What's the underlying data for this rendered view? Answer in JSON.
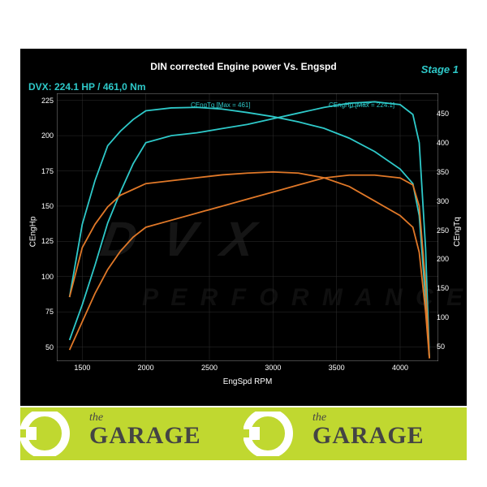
{
  "title": "DIN corrected Engine power Vs. Engspd",
  "stage": "Stage 1",
  "dvx_label": "DVX:  224.1 HP / 461,0 Nm",
  "xlabel": "EngSpd RPM",
  "ylabel_left": "CEngHp",
  "ylabel_right": "CEngTq",
  "annot_tq": "CEngTq [Max = 461]",
  "annot_hp": "CEngHp [Max = 224.1]",
  "colors": {
    "bg": "#000000",
    "grid": "#2f2f2f",
    "tuned": "#2ec9c9",
    "stock": "#e07828",
    "text": "#ffffff",
    "accent": "#2ec9c9",
    "footer_bg": "#c0d830",
    "footer_text": "#444444"
  },
  "xlim": [
    1300,
    4300
  ],
  "xticks": [
    1500,
    2000,
    2500,
    3000,
    3500,
    4000
  ],
  "ylim_left": [
    40,
    230
  ],
  "yticks_left": [
    50,
    75,
    100,
    125,
    150,
    175,
    200,
    225
  ],
  "ylim_right": [
    25,
    485
  ],
  "yticks_right": [
    50,
    100,
    150,
    200,
    250,
    300,
    350,
    400,
    450
  ],
  "series": {
    "tuned_hp": {
      "color": "#2ec9c9",
      "axis": "left",
      "x": [
        1400,
        1500,
        1600,
        1700,
        1800,
        1900,
        2000,
        2200,
        2400,
        2600,
        2800,
        3000,
        3200,
        3400,
        3600,
        3800,
        4000,
        4100,
        4150,
        4200,
        4230
      ],
      "y": [
        55,
        80,
        108,
        138,
        160,
        180,
        195,
        200,
        202,
        205,
        208,
        212,
        216,
        220,
        223,
        224,
        222,
        215,
        195,
        120,
        42
      ]
    },
    "tuned_tq": {
      "color": "#2ec9c9",
      "axis": "right",
      "x": [
        1400,
        1500,
        1600,
        1700,
        1800,
        1900,
        2000,
        2200,
        2400,
        2600,
        2800,
        3000,
        3200,
        3400,
        3600,
        3800,
        4000,
        4100,
        4150,
        4200,
        4230
      ],
      "y": [
        135,
        260,
        335,
        395,
        420,
        440,
        455,
        460,
        461,
        458,
        452,
        445,
        436,
        425,
        408,
        385,
        355,
        330,
        275,
        130,
        30
      ]
    },
    "stock_hp": {
      "color": "#e07828",
      "axis": "left",
      "x": [
        1400,
        1500,
        1600,
        1700,
        1800,
        1900,
        2000,
        2200,
        2400,
        2600,
        2800,
        3000,
        3200,
        3400,
        3600,
        3800,
        4000,
        4100,
        4150,
        4200,
        4230
      ],
      "y": [
        48,
        68,
        88,
        105,
        118,
        128,
        135,
        140,
        145,
        150,
        155,
        160,
        165,
        170,
        172,
        172,
        170,
        165,
        150,
        95,
        42
      ]
    },
    "stock_tq": {
      "color": "#e07828",
      "axis": "right",
      "x": [
        1400,
        1500,
        1600,
        1700,
        1800,
        1900,
        2000,
        2200,
        2400,
        2600,
        2800,
        3000,
        3200,
        3400,
        3600,
        3800,
        4000,
        4100,
        4150,
        4200,
        4230
      ],
      "y": [
        135,
        220,
        260,
        290,
        310,
        320,
        330,
        335,
        340,
        345,
        348,
        350,
        348,
        340,
        325,
        300,
        275,
        255,
        212,
        110,
        30
      ]
    }
  },
  "footer": {
    "the": "the",
    "garage": "GARAGE"
  }
}
